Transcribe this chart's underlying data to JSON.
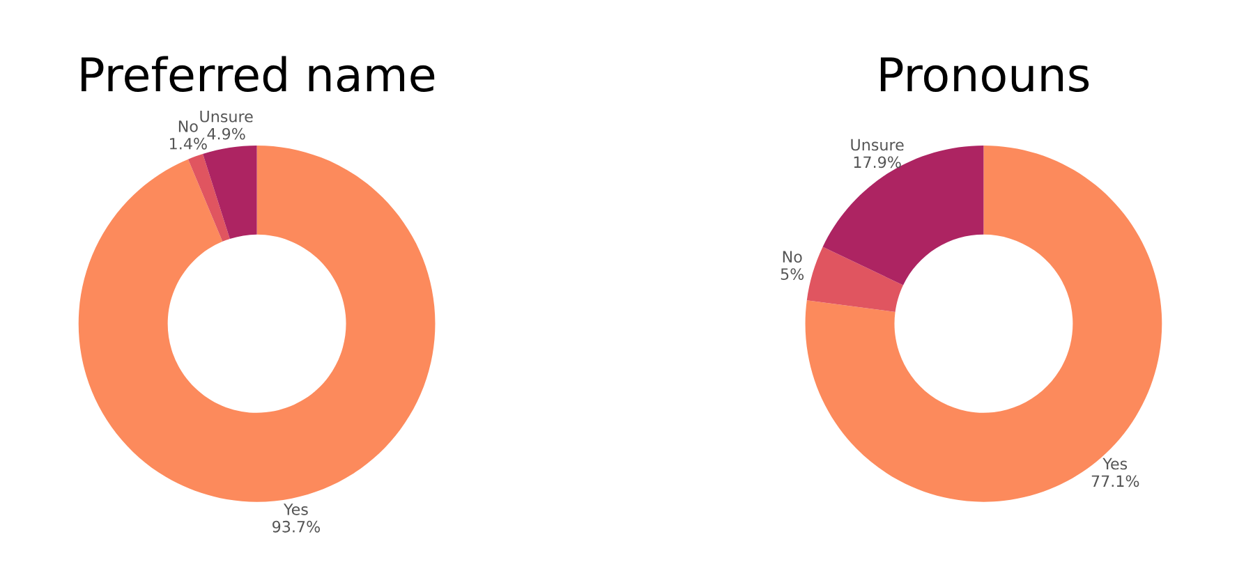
{
  "chart_data": [
    {
      "type": "donut",
      "title": "Preferred name",
      "categories": [
        "Yes",
        "No",
        "Unsure"
      ],
      "values": [
        93.7,
        1.4,
        4.9
      ],
      "value_labels": [
        "93.7%",
        "1.4%",
        "4.9%"
      ],
      "colors": [
        "#fc8a5c",
        "#e05560",
        "#ad2462"
      ],
      "legend": false
    },
    {
      "type": "donut",
      "title": "Pronouns",
      "categories": [
        "Yes",
        "No",
        "Unsure"
      ],
      "values": [
        77.1,
        5,
        17.9
      ],
      "value_labels": [
        "77.1%",
        "5%",
        "17.9%"
      ],
      "colors": [
        "#fc8a5c",
        "#e05560",
        "#ad2462"
      ],
      "legend": false
    }
  ]
}
